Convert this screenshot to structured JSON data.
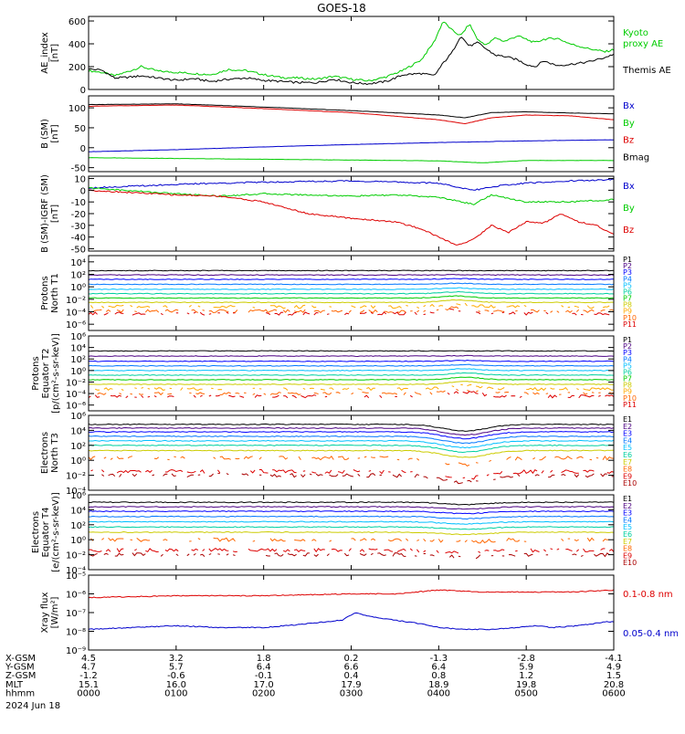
{
  "title": "GOES-18",
  "colors": {
    "black": "#000000",
    "green": "#00cc00",
    "red": "#dd0000",
    "blue": "#0000cc",
    "channels": [
      "#000000",
      "#4b0082",
      "#0000ff",
      "#0077ff",
      "#00bfff",
      "#00d0a0",
      "#00cc00",
      "#cccc00",
      "#ffaa00",
      "#ff6600",
      "#dd0000"
    ]
  },
  "panels": [
    {
      "id": "ae",
      "ylabel": [
        "AE_index",
        "[nT]"
      ],
      "ylim": [
        0,
        640
      ],
      "ticks": [
        0,
        200,
        400,
        600
      ],
      "tick_labels": [
        "0",
        "200",
        "400",
        "600"
      ],
      "log": false,
      "legend": [
        {
          "text": "Kyoto",
          "color": "#00cc00"
        },
        {
          "text": "proxy AE",
          "color": "#00cc00"
        },
        {
          "text": "Themis AE",
          "color": "#000000"
        }
      ],
      "series": [
        {
          "name": "Kyoto",
          "color": "#00cc00",
          "x": [
            0,
            0.15,
            0.3,
            0.5,
            0.6,
            0.8,
            1.0,
            1.2,
            1.4,
            1.6,
            1.8,
            2.0,
            2.2,
            2.4,
            2.6,
            2.8,
            3.0,
            3.2,
            3.4,
            3.6,
            3.8,
            3.95,
            4.05,
            4.15,
            4.25,
            4.35,
            4.45,
            4.55,
            4.65,
            4.75,
            4.9,
            5.0,
            5.1,
            5.2,
            5.35,
            5.5,
            5.7,
            5.9,
            6.0
          ],
          "values": [
            165,
            150,
            120,
            170,
            200,
            160,
            150,
            140,
            130,
            175,
            165,
            130,
            105,
            100,
            90,
            115,
            90,
            75,
            110,
            170,
            260,
            420,
            600,
            520,
            470,
            575,
            430,
            390,
            455,
            420,
            470,
            440,
            410,
            440,
            450,
            400,
            360,
            330,
            350
          ]
        },
        {
          "name": "Themis AE",
          "color": "#000000",
          "x": [
            0,
            0.15,
            0.3,
            0.5,
            0.6,
            0.8,
            1.0,
            1.2,
            1.4,
            1.6,
            1.8,
            2.0,
            2.2,
            2.4,
            2.6,
            2.8,
            3.0,
            3.2,
            3.4,
            3.6,
            3.8,
            3.95,
            4.05,
            4.15,
            4.25,
            4.35,
            4.45,
            4.55,
            4.65,
            4.75,
            4.9,
            5.0,
            5.1,
            5.2,
            5.35,
            5.5,
            5.7,
            5.9,
            6.0
          ],
          "values": [
            180,
            170,
            100,
            110,
            120,
            100,
            80,
            95,
            70,
            90,
            100,
            80,
            70,
            60,
            60,
            90,
            60,
            50,
            70,
            130,
            140,
            120,
            230,
            320,
            470,
            380,
            410,
            350,
            300,
            290,
            260,
            220,
            200,
            250,
            210,
            220,
            240,
            280,
            310
          ]
        }
      ]
    },
    {
      "id": "bsm",
      "ylabel": [
        "B (SM)",
        "[nT]"
      ],
      "ylim": [
        -60,
        130
      ],
      "ticks": [
        -50,
        0,
        50,
        100
      ],
      "tick_labels": [
        "-50",
        "0",
        "50",
        "100"
      ],
      "log": false,
      "legend": [
        {
          "text": "Bx",
          "color": "#0000cc"
        },
        {
          "text": "By",
          "color": "#00cc00"
        },
        {
          "text": "Bz",
          "color": "#dd0000"
        },
        {
          "text": "Bmag",
          "color": "#000000"
        }
      ],
      "series": [
        {
          "name": "Bmag",
          "color": "#000000",
          "x": [
            0,
            1,
            2,
            3,
            4,
            4.3,
            4.6,
            5,
            5.5,
            6
          ],
          "values": [
            108,
            110,
            102,
            93,
            82,
            75,
            88,
            90,
            87,
            85
          ]
        },
        {
          "name": "Bz",
          "color": "#dd0000",
          "x": [
            0,
            1,
            2,
            3,
            4,
            4.3,
            4.6,
            5,
            5.5,
            6
          ],
          "values": [
            104,
            107,
            98,
            88,
            70,
            60,
            75,
            82,
            80,
            70
          ]
        },
        {
          "name": "Bx",
          "color": "#0000cc",
          "x": [
            0,
            1,
            2,
            3,
            4,
            5,
            6
          ],
          "values": [
            -10,
            -5,
            2,
            8,
            13,
            17,
            20
          ]
        },
        {
          "name": "By",
          "color": "#00cc00",
          "x": [
            0,
            1,
            2,
            3,
            4,
            4.5,
            5,
            6
          ],
          "values": [
            -25,
            -27,
            -29,
            -31,
            -33,
            -38,
            -32,
            -32
          ]
        }
      ]
    },
    {
      "id": "bdiff",
      "ylabel": [
        "B (SM)-IGRF (SM)",
        "[nT]"
      ],
      "ylim": [
        -52,
        12
      ],
      "ticks": [
        -50,
        -40,
        -30,
        -20,
        -10,
        0,
        10
      ],
      "tick_labels": [
        "-50",
        "-40",
        "-30",
        "-20",
        "-10",
        "0",
        "10"
      ],
      "log": false,
      "legend": [
        {
          "text": "Bx",
          "color": "#0000cc"
        },
        {
          "text": "By",
          "color": "#00cc00"
        },
        {
          "text": "Bz",
          "color": "#dd0000"
        }
      ],
      "series": [
        {
          "name": "Bx",
          "color": "#0000cc",
          "x": [
            0,
            1,
            2,
            3,
            4,
            4.4,
            4.7,
            5,
            5.5,
            6
          ],
          "values": [
            2,
            5,
            7,
            8,
            6,
            0,
            4,
            6,
            8,
            9
          ]
        },
        {
          "name": "By",
          "color": "#00cc00",
          "x": [
            0,
            1,
            1.5,
            2,
            2.5,
            3,
            3.5,
            4,
            4.4,
            4.6,
            5,
            5.5,
            6
          ],
          "values": [
            2,
            -3,
            -5,
            -3,
            -4,
            -5,
            -4,
            -6,
            -12,
            -4,
            -10,
            -10,
            -8
          ]
        },
        {
          "name": "Bz",
          "color": "#dd0000",
          "x": [
            0,
            0.5,
            1,
            1.5,
            2,
            2.5,
            3,
            3.5,
            3.8,
            4,
            4.2,
            4.4,
            4.6,
            4.8,
            5,
            5.2,
            5.4,
            5.6,
            5.8,
            6
          ],
          "values": [
            0,
            -2,
            -4,
            -5,
            -10,
            -20,
            -24,
            -27,
            -33,
            -40,
            -47,
            -42,
            -30,
            -36,
            -27,
            -28,
            -20,
            -27,
            -30,
            -38
          ]
        }
      ]
    },
    {
      "id": "pn",
      "ylabel": [
        "Protons",
        "North T1"
      ],
      "ylim": [
        -7,
        5
      ],
      "ticks": [
        -6,
        -4,
        -2,
        0,
        2,
        4
      ],
      "tick_labels": [
        "10⁻⁶",
        "10⁻⁴",
        "10⁻²",
        "10⁰",
        "10²",
        "10⁴"
      ],
      "log": true,
      "legend": [
        {
          "text": "P1",
          "color": "#000000"
        },
        {
          "text": "P2",
          "color": "#4b0082"
        },
        {
          "text": "P3",
          "color": "#0000ff"
        },
        {
          "text": "P4",
          "color": "#0077ff"
        },
        {
          "text": "P5",
          "color": "#00bfff"
        },
        {
          "text": "P6",
          "color": "#00d0a0"
        },
        {
          "text": "P7",
          "color": "#00cc00"
        },
        {
          "text": "P8",
          "color": "#cccc00"
        },
        {
          "text": "P9",
          "color": "#ffaa00"
        },
        {
          "text": "P10",
          "color": "#ff6600"
        },
        {
          "text": "P11",
          "color": "#dd0000"
        }
      ],
      "levels": [
        2.6,
        1.9,
        1.2,
        0.4,
        -0.4,
        -1.1,
        -1.8,
        -2.5,
        -3.2,
        -3.9,
        -4.3
      ],
      "burst": {
        "x": 4.2,
        "amp": 0.6
      }
    },
    {
      "id": "pe",
      "ylabel": [
        "Protons",
        "Equator T2",
        "[p/(cm²-s-sr-keV)]"
      ],
      "ylim": [
        -7,
        6
      ],
      "ticks": [
        -6,
        -4,
        -2,
        0,
        2,
        4,
        6
      ],
      "tick_labels": [
        "10⁻⁶",
        "10⁻⁴",
        "10⁻²",
        "10⁰",
        "10²",
        "10⁴",
        "10⁶"
      ],
      "log": true,
      "legend": [
        {
          "text": "P1",
          "color": "#000000"
        },
        {
          "text": "P2",
          "color": "#4b0082"
        },
        {
          "text": "P3",
          "color": "#0000ff"
        },
        {
          "text": "P4",
          "color": "#0077ff"
        },
        {
          "text": "P5",
          "color": "#00bfff"
        },
        {
          "text": "P6",
          "color": "#00d0a0"
        },
        {
          "text": "P7",
          "color": "#00cc00"
        },
        {
          "text": "P8",
          "color": "#cccc00"
        },
        {
          "text": "P9",
          "color": "#ffaa00"
        },
        {
          "text": "P10",
          "color": "#ff6600"
        },
        {
          "text": "P11",
          "color": "#dd0000"
        }
      ],
      "levels": [
        3.4,
        2.5,
        1.6,
        0.8,
        0.0,
        -0.8,
        -1.6,
        -2.4,
        -3.2,
        -4.0,
        -4.5
      ],
      "burst": {
        "x": 4.3,
        "amp": 0.8
      }
    },
    {
      "id": "en",
      "ylabel": [
        "Electrons",
        "North T3"
      ],
      "ylim": [
        -4,
        6
      ],
      "ticks": [
        -4,
        -2,
        0,
        2,
        4,
        6
      ],
      "tick_labels": [
        "10⁻⁴",
        "10⁻²",
        "10⁰",
        "10²",
        "10⁴",
        "10⁶"
      ],
      "log": true,
      "legend": [
        {
          "text": "E1",
          "color": "#000000"
        },
        {
          "text": "E2",
          "color": "#4b0082"
        },
        {
          "text": "E3",
          "color": "#0000ff"
        },
        {
          "text": "E4",
          "color": "#0077ff"
        },
        {
          "text": "E5",
          "color": "#00bfff"
        },
        {
          "text": "E6",
          "color": "#00d0a0"
        },
        {
          "text": "E7",
          "color": "#cccc00"
        },
        {
          "text": "E8",
          "color": "#ff6600"
        },
        {
          "text": "E9",
          "color": "#dd0000"
        },
        {
          "text": "E10",
          "color": "#aa0000"
        }
      ],
      "levels": [
        4.8,
        4.3,
        3.8,
        3.2,
        2.6,
        2.0,
        1.3,
        0.3,
        -1.5,
        -2.0
      ],
      "dip": {
        "x": 4.3,
        "amp": 0.9
      }
    },
    {
      "id": "ee",
      "ylabel": [
        "Electrons",
        "Equator T4",
        "[e/(cm²-s-sr-keV)]"
      ],
      "ylim": [
        -4,
        6
      ],
      "ticks": [
        -4,
        -2,
        0,
        2,
        4,
        6
      ],
      "tick_labels": [
        "10⁻⁴",
        "10⁻²",
        "10⁰",
        "10²",
        "10⁴",
        "10⁶"
      ],
      "log": true,
      "legend": [
        {
          "text": "E1",
          "color": "#000000"
        },
        {
          "text": "E2",
          "color": "#4b0082"
        },
        {
          "text": "E3",
          "color": "#0000ff"
        },
        {
          "text": "E4",
          "color": "#0077ff"
        },
        {
          "text": "E5",
          "color": "#00bfff"
        },
        {
          "text": "E6",
          "color": "#00d0a0"
        },
        {
          "text": "E7",
          "color": "#cccc00"
        },
        {
          "text": "E8",
          "color": "#ff6600"
        },
        {
          "text": "E9",
          "color": "#dd0000"
        },
        {
          "text": "E10",
          "color": "#aa0000"
        }
      ],
      "levels": [
        5.0,
        4.4,
        3.8,
        3.1,
        2.4,
        1.7,
        1.0,
        0.0,
        -1.4,
        -2.0
      ],
      "dip": {
        "x": 4.3,
        "amp": 0.3
      }
    },
    {
      "id": "xray",
      "ylabel": [
        "Xray flux",
        "[W/m²]"
      ],
      "ylim": [
        -9,
        -5
      ],
      "ticks": [
        -9,
        -8,
        -7,
        -6,
        -5
      ],
      "tick_labels": [
        "10⁻⁹",
        "10⁻⁸",
        "10⁻⁷",
        "10⁻⁶",
        "10⁻⁵"
      ],
      "log": true,
      "legend": [
        {
          "text": "0.1-0.8 nm",
          "color": "#dd0000"
        },
        {
          "text": "0.05-0.4 nm",
          "color": "#0000cc"
        }
      ],
      "series": [
        {
          "name": "0.1-0.8 nm",
          "color": "#dd0000",
          "x": [
            0,
            1,
            2,
            3,
            3.5,
            4,
            4.5,
            5,
            5.5,
            6
          ],
          "values": [
            -6.2,
            -6.1,
            -6.1,
            -6.0,
            -6.0,
            -5.8,
            -5.9,
            -5.9,
            -5.9,
            -5.8
          ]
        },
        {
          "name": "0.05-0.4 nm",
          "color": "#0000cc",
          "x": [
            0,
            0.5,
            1,
            1.5,
            2,
            2.5,
            2.9,
            3.05,
            3.2,
            3.5,
            3.8,
            4,
            4.3,
            4.6,
            4.9,
            5.1,
            5.3,
            5.6,
            5.9,
            6
          ],
          "values": [
            -7.9,
            -7.8,
            -7.7,
            -7.8,
            -7.8,
            -7.6,
            -7.4,
            -7.0,
            -7.2,
            -7.4,
            -7.6,
            -7.8,
            -7.9,
            -7.9,
            -7.8,
            -7.7,
            -7.8,
            -7.7,
            -7.5,
            -7.5
          ]
        }
      ]
    }
  ],
  "x_axis": {
    "xlim": [
      0,
      6
    ],
    "rows": [
      {
        "label": "X-GSM",
        "values": [
          "4.5",
          "3.2",
          "1.8",
          "0.2",
          "-1.3",
          "-2.8",
          "-4.1"
        ]
      },
      {
        "label": "Y-GSM",
        "values": [
          "4.7",
          "5.7",
          "6.4",
          "6.6",
          "6.4",
          "5.9",
          "4.9"
        ]
      },
      {
        "label": "Z-GSM",
        "values": [
          "-1.2",
          "-0.6",
          "-0.1",
          "0.4",
          "0.8",
          "1.2",
          "1.5"
        ]
      },
      {
        "label": "MLT",
        "values": [
          "15.1",
          "16.0",
          "17.0",
          "17.9",
          "18.9",
          "19.8",
          "20.8"
        ]
      },
      {
        "label": "hhmm",
        "values": [
          "0000",
          "0100",
          "0200",
          "0300",
          "0400",
          "0500",
          "0600"
        ]
      }
    ],
    "date": "2024 Jun 18"
  },
  "chart_data": {
    "type": "line",
    "title": "GOES-18",
    "xlabel": "hhmm",
    "xlim": [
      0,
      6
    ],
    "x_tick_labels": [
      "0000",
      "0100",
      "0200",
      "0300",
      "0400",
      "0500",
      "0600"
    ],
    "date": "2024 Jun 18",
    "grid": false,
    "legend_position": "right",
    "panels": [
      "AE_index",
      "B (SM)",
      "B (SM)-IGRF (SM)",
      "Protons North T1",
      "Protons Equator T2",
      "Electrons North T3",
      "Electrons Equator T4",
      "Xray flux"
    ]
  }
}
